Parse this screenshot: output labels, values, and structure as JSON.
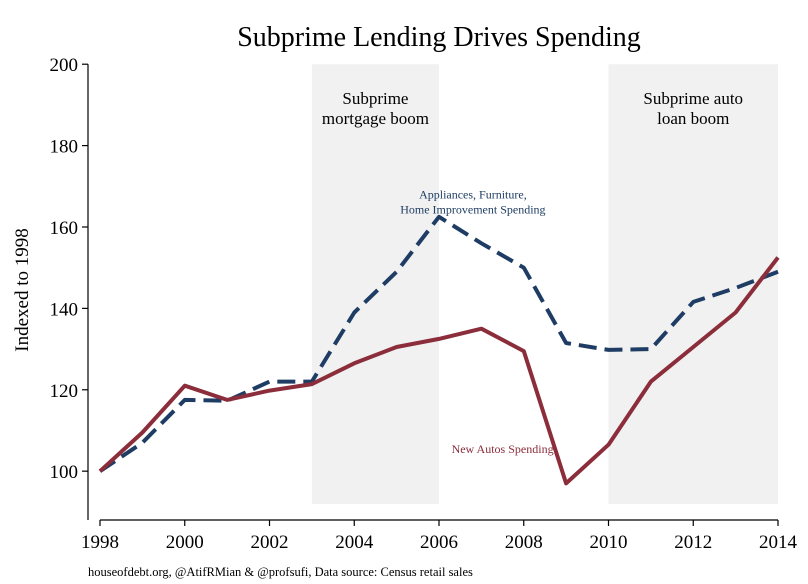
{
  "chart_data": {
    "type": "line",
    "title": "Subprime Lending Drives Spending",
    "xlabel": "",
    "ylabel": "Indexed to 1998",
    "xlim": [
      1998,
      2014
    ],
    "ylim": [
      88,
      203
    ],
    "x_ticks": [
      1998,
      2000,
      2002,
      2004,
      2006,
      2008,
      2010,
      2012,
      2014
    ],
    "y_ticks": [
      100,
      120,
      140,
      160,
      180,
      200
    ],
    "x_tick_labels": [
      "1998",
      "2000",
      "2002",
      "2004",
      "2006",
      "2008",
      "2010",
      "2012",
      "2014"
    ],
    "y_tick_labels": [
      "100",
      "120",
      "140",
      "160",
      "180",
      "200"
    ],
    "grid": false,
    "shaded_regions": [
      {
        "x0": 2003,
        "x1": 2006,
        "label_lines": [
          "Subprime",
          "mortgage boom"
        ]
      },
      {
        "x0": 2010,
        "x1": 2014,
        "label_lines": [
          "Subprime auto",
          "loan boom"
        ]
      }
    ],
    "x": [
      1998,
      1999,
      2000,
      2001,
      2002,
      2003,
      2004,
      2005,
      2006,
      2007,
      2008,
      2009,
      2010,
      2011,
      2012,
      2013,
      2014
    ],
    "series": [
      {
        "name": "Appliances, Furniture, Home Improvement Spending",
        "label_lines": [
          "Appliances, Furniture,",
          "Home Improvement Spending"
        ],
        "color": "#1f3d64",
        "style": "dashed",
        "values": [
          100,
          107,
          117.5,
          117.3,
          122,
          122,
          139,
          149,
          162.5,
          156,
          150,
          131.5,
          129.8,
          130,
          141.6,
          145,
          149
        ]
      },
      {
        "name": "New Autos Spending",
        "label_lines": [
          "New Autos Spending"
        ],
        "color": "#8b2d3a",
        "style": "solid",
        "values": [
          100,
          109.5,
          121,
          117.5,
          119.8,
          121.4,
          126.5,
          130.5,
          132.5,
          135,
          129.5,
          97,
          106.5,
          122,
          130.5,
          139,
          152.5
        ]
      }
    ]
  },
  "footer": {
    "source": "houseofdebt.org, @AtifRMian & @profsufi, Data source: Census retail sales"
  }
}
